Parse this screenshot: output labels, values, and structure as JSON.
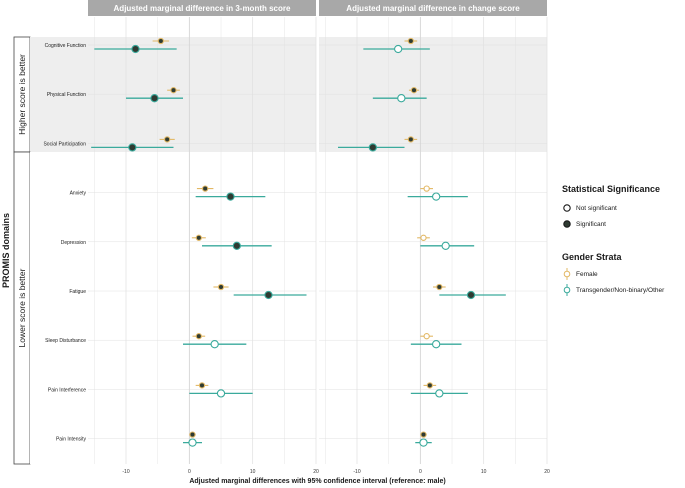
{
  "chart_data": {
    "type": "forest",
    "outer_label": "PROMIS domains",
    "xlabel": "Adjusted marginal differences with 95% confidence interval (reference: male)",
    "xlim": [
      -16,
      20
    ],
    "xticks": [
      -10,
      0,
      10,
      20
    ],
    "groups": [
      {
        "label": "Higher score is better",
        "domains": [
          "Cognitive Function",
          "Physical Function",
          "Social Participation"
        ],
        "shaded": true
      },
      {
        "label": "Lower score is better",
        "domains": [
          "Anxiety",
          "Depression",
          "Fatigue",
          "Sleep Disturbance",
          "Pain Interference",
          "Pain Intensity"
        ],
        "shaded": false
      }
    ],
    "panels": [
      {
        "title": "Adjusted marginal difference in 3-month score",
        "points": [
          {
            "domain": "Cognitive Function",
            "series": "Female",
            "est": -4.5,
            "lo": -5.8,
            "hi": -3.2,
            "significant": true
          },
          {
            "domain": "Cognitive Function",
            "series": "Transgender/Non-binary/Other",
            "est": -8.5,
            "lo": -15.0,
            "hi": -2.0,
            "significant": true
          },
          {
            "domain": "Physical Function",
            "series": "Female",
            "est": -2.5,
            "lo": -3.5,
            "hi": -1.5,
            "significant": true
          },
          {
            "domain": "Physical Function",
            "series": "Transgender/Non-binary/Other",
            "est": -5.5,
            "lo": -10.0,
            "hi": -1.0,
            "significant": true
          },
          {
            "domain": "Social Participation",
            "series": "Female",
            "est": -3.5,
            "lo": -4.7,
            "hi": -2.3,
            "significant": true
          },
          {
            "domain": "Social Participation",
            "series": "Transgender/Non-binary/Other",
            "est": -9.0,
            "lo": -15.5,
            "hi": -2.5,
            "significant": true
          },
          {
            "domain": "Anxiety",
            "series": "Female",
            "est": 2.5,
            "lo": 1.2,
            "hi": 3.8,
            "significant": true
          },
          {
            "domain": "Anxiety",
            "series": "Transgender/Non-binary/Other",
            "est": 6.5,
            "lo": 1.0,
            "hi": 12.0,
            "significant": true
          },
          {
            "domain": "Depression",
            "series": "Female",
            "est": 1.5,
            "lo": 0.4,
            "hi": 2.6,
            "significant": true
          },
          {
            "domain": "Depression",
            "series": "Transgender/Non-binary/Other",
            "est": 7.5,
            "lo": 2.0,
            "hi": 13.0,
            "significant": true
          },
          {
            "domain": "Fatigue",
            "series": "Female",
            "est": 5.0,
            "lo": 3.8,
            "hi": 6.2,
            "significant": true
          },
          {
            "domain": "Fatigue",
            "series": "Transgender/Non-binary/Other",
            "est": 12.5,
            "lo": 7.0,
            "hi": 18.5,
            "significant": true
          },
          {
            "domain": "Sleep Disturbance",
            "series": "Female",
            "est": 1.5,
            "lo": 0.5,
            "hi": 2.5,
            "significant": true
          },
          {
            "domain": "Sleep Disturbance",
            "series": "Transgender/Non-binary/Other",
            "est": 4.0,
            "lo": -1.0,
            "hi": 9.0,
            "significant": false
          },
          {
            "domain": "Pain Interference",
            "series": "Female",
            "est": 2.0,
            "lo": 1.0,
            "hi": 3.0,
            "significant": true
          },
          {
            "domain": "Pain Interference",
            "series": "Transgender/Non-binary/Other",
            "est": 5.0,
            "lo": 0.0,
            "hi": 10.0,
            "significant": false
          },
          {
            "domain": "Pain Intensity",
            "series": "Female",
            "est": 0.5,
            "lo": 0.0,
            "hi": 1.0,
            "significant": true
          },
          {
            "domain": "Pain Intensity",
            "series": "Transgender/Non-binary/Other",
            "est": 0.5,
            "lo": -1.0,
            "hi": 2.0,
            "significant": false
          }
        ]
      },
      {
        "title": "Adjusted marginal difference in change score",
        "points": [
          {
            "domain": "Cognitive Function",
            "series": "Female",
            "est": -1.5,
            "lo": -2.5,
            "hi": -0.5,
            "significant": true
          },
          {
            "domain": "Cognitive Function",
            "series": "Transgender/Non-binary/Other",
            "est": -3.5,
            "lo": -9.0,
            "hi": 1.5,
            "significant": false
          },
          {
            "domain": "Physical Function",
            "series": "Female",
            "est": -1.0,
            "lo": -1.8,
            "hi": -0.2,
            "significant": true
          },
          {
            "domain": "Physical Function",
            "series": "Transgender/Non-binary/Other",
            "est": -3.0,
            "lo": -7.5,
            "hi": 1.0,
            "significant": false
          },
          {
            "domain": "Social Participation",
            "series": "Female",
            "est": -1.5,
            "lo": -2.5,
            "hi": -0.5,
            "significant": true
          },
          {
            "domain": "Social Participation",
            "series": "Transgender/Non-binary/Other",
            "est": -7.5,
            "lo": -13.0,
            "hi": -2.5,
            "significant": true
          },
          {
            "domain": "Anxiety",
            "series": "Female",
            "est": 1.0,
            "lo": 0.0,
            "hi": 2.0,
            "significant": false
          },
          {
            "domain": "Anxiety",
            "series": "Transgender/Non-binary/Other",
            "est": 2.5,
            "lo": -2.0,
            "hi": 7.5,
            "significant": false
          },
          {
            "domain": "Depression",
            "series": "Female",
            "est": 0.5,
            "lo": -0.5,
            "hi": 1.5,
            "significant": false
          },
          {
            "domain": "Depression",
            "series": "Transgender/Non-binary/Other",
            "est": 4.0,
            "lo": 0.0,
            "hi": 8.5,
            "significant": false
          },
          {
            "domain": "Fatigue",
            "series": "Female",
            "est": 3.0,
            "lo": 2.0,
            "hi": 4.0,
            "significant": true
          },
          {
            "domain": "Fatigue",
            "series": "Transgender/Non-binary/Other",
            "est": 8.0,
            "lo": 3.0,
            "hi": 13.5,
            "significant": true
          },
          {
            "domain": "Sleep Disturbance",
            "series": "Female",
            "est": 1.0,
            "lo": 0.0,
            "hi": 2.0,
            "significant": false
          },
          {
            "domain": "Sleep Disturbance",
            "series": "Transgender/Non-binary/Other",
            "est": 2.5,
            "lo": -1.5,
            "hi": 6.5,
            "significant": false
          },
          {
            "domain": "Pain Interference",
            "series": "Female",
            "est": 1.5,
            "lo": 0.5,
            "hi": 2.5,
            "significant": true
          },
          {
            "domain": "Pain Interference",
            "series": "Transgender/Non-binary/Other",
            "est": 3.0,
            "lo": -1.5,
            "hi": 7.5,
            "significant": false
          },
          {
            "domain": "Pain Intensity",
            "series": "Female",
            "est": 0.5,
            "lo": 0.0,
            "hi": 1.0,
            "significant": true
          },
          {
            "domain": "Pain Intensity",
            "series": "Transgender/Non-binary/Other",
            "est": 0.5,
            "lo": -0.8,
            "hi": 1.8,
            "significant": false
          }
        ]
      }
    ],
    "legend": {
      "significance": {
        "title": "Statistical Significance",
        "items": [
          "Not significant",
          "Significant"
        ]
      },
      "gender": {
        "title": "Gender Strata",
        "items": [
          "Female",
          "Transgender/Non-binary/Other"
        ]
      }
    },
    "colors": {
      "Female": "#e2b865",
      "Transgender/Non-binary/Other": "#3aaa9c",
      "significant_fill": "#2f3b32",
      "strip": "#a8a8a8",
      "shade": "#eeeeee",
      "grid": "#e0e0e0"
    }
  }
}
